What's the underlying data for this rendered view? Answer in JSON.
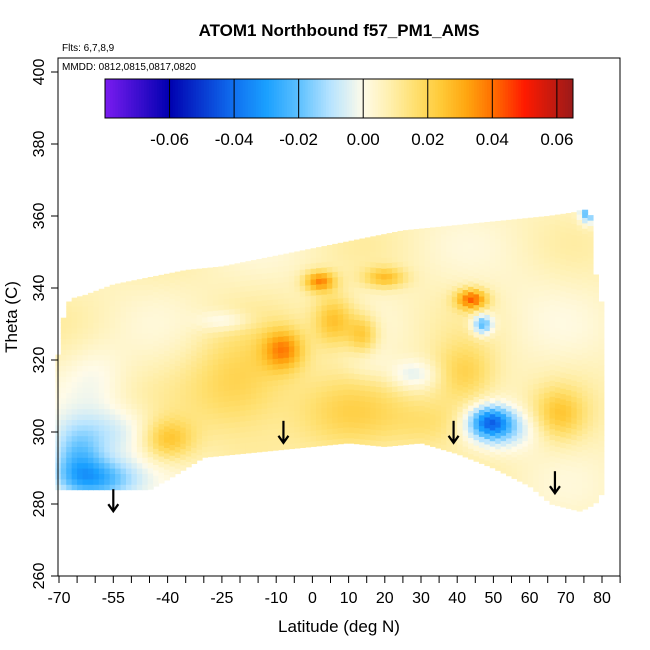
{
  "chart_data": {
    "type": "heatmap",
    "title": "ATOM1 Northbound f57_PM1_AMS",
    "flights_note": "Flts: 6,7,8,9",
    "dates_note": "MMDD: 0812,0815,0817,0820",
    "xlabel": "Latitude (deg N)",
    "ylabel": "Theta (C)",
    "xlim": [
      -70,
      85
    ],
    "ylim": [
      260,
      400
    ],
    "x_tick_labels": [
      "-70",
      "-55",
      "-40",
      "-25",
      "-10",
      "0",
      "10",
      "20",
      "30",
      "40",
      "50",
      "60",
      "70",
      "80"
    ],
    "x_tick_values": [
      -70,
      -55,
      -40,
      -25,
      -10,
      0,
      10,
      20,
      30,
      40,
      50,
      60,
      70,
      80
    ],
    "x_minor_ticks": [
      -65,
      -60,
      -50,
      -45,
      -35,
      -30,
      -20,
      -15,
      -5,
      5,
      15,
      25,
      35,
      45,
      55,
      65,
      75,
      85
    ],
    "y_tick_labels": [
      "260",
      "280",
      "300",
      "320",
      "340",
      "360",
      "380",
      "400"
    ],
    "y_tick_values": [
      260,
      280,
      300,
      320,
      340,
      360,
      380,
      400
    ],
    "colorbar": {
      "range": [
        -0.08,
        0.065
      ],
      "labels": [
        "-0.06",
        "-0.04",
        "-0.02",
        "0.00",
        "0.02",
        "0.04",
        "0.06"
      ],
      "label_values": [
        -0.06,
        -0.04,
        -0.02,
        0.0,
        0.02,
        0.04,
        0.06
      ],
      "colors": [
        "#7a1cf0",
        "#1010d8",
        "#0000b0",
        "#0a50e6",
        "#1aa0ff",
        "#7fd0ff",
        "#d8f0ff",
        "#ffffff",
        "#fff8d0",
        "#ffe680",
        "#ffc830",
        "#ff9a00",
        "#ff5a00",
        "#ff0000",
        "#c80000",
        "#a01818"
      ]
    },
    "arrows": [
      {
        "lat": -55,
        "theta": 278
      },
      {
        "lat": -8,
        "theta": 297
      },
      {
        "lat": 39,
        "theta": 297
      },
      {
        "lat": 67,
        "theta": 283
      }
    ],
    "upper_boundary": [
      [
        -71,
        302
      ],
      [
        -70,
        328
      ],
      [
        -67,
        337
      ],
      [
        -63,
        338
      ],
      [
        -55,
        341
      ],
      [
        -45,
        343
      ],
      [
        -35,
        345
      ],
      [
        -25,
        346
      ],
      [
        -15,
        348
      ],
      [
        -5,
        350
      ],
      [
        5,
        352
      ],
      [
        15,
        354
      ],
      [
        25,
        356
      ],
      [
        35,
        357
      ],
      [
        45,
        358
      ],
      [
        55,
        359
      ],
      [
        65,
        360
      ],
      [
        72,
        361
      ],
      [
        75,
        362
      ],
      [
        77,
        360
      ],
      [
        78,
        345
      ],
      [
        80,
        335
      ],
      [
        80,
        315
      ]
    ],
    "lower_boundary": [
      [
        -71,
        284
      ],
      [
        -50,
        284
      ],
      [
        -45,
        284
      ],
      [
        -38,
        288
      ],
      [
        -30,
        293
      ],
      [
        -20,
        294
      ],
      [
        -10,
        295
      ],
      [
        0,
        296
      ],
      [
        10,
        297
      ],
      [
        20,
        296
      ],
      [
        30,
        297
      ],
      [
        40,
        294
      ],
      [
        50,
        290
      ],
      [
        60,
        285
      ],
      [
        66,
        280
      ],
      [
        70,
        279
      ],
      [
        74,
        278
      ],
      [
        78,
        280
      ],
      [
        80,
        283
      ]
    ],
    "field_features": [
      {
        "lat": -60,
        "theta": 287,
        "value": -0.03,
        "sx": 8,
        "sy": 4
      },
      {
        "lat": -65,
        "theta": 293,
        "value": -0.022,
        "sx": 5,
        "sy": 6
      },
      {
        "lat": -55,
        "theta": 300,
        "value": -0.012,
        "sx": 9,
        "sy": 5
      },
      {
        "lat": -60,
        "theta": 315,
        "value": -0.006,
        "sx": 6,
        "sy": 7
      },
      {
        "lat": 49,
        "theta": 303,
        "value": -0.035,
        "sx": 4,
        "sy": 3
      },
      {
        "lat": 52,
        "theta": 301,
        "value": -0.018,
        "sx": 7,
        "sy": 4
      },
      {
        "lat": 47,
        "theta": 330,
        "value": -0.03,
        "sx": 2,
        "sy": 2
      },
      {
        "lat": 28,
        "theta": 316,
        "value": -0.012,
        "sx": 5,
        "sy": 3
      },
      {
        "lat": -24,
        "theta": 331,
        "value": -0.01,
        "sx": 5,
        "sy": 2
      },
      {
        "lat": 15,
        "theta": 320,
        "value": -0.006,
        "sx": 4,
        "sy": 4
      },
      {
        "lat": 76,
        "theta": 361,
        "value": -0.03,
        "sx": 1.5,
        "sy": 2
      },
      {
        "lat": 60,
        "theta": 338,
        "value": -0.002,
        "sx": 10,
        "sy": 12
      },
      {
        "lat": -8,
        "theta": 323,
        "value": 0.026,
        "sx": 4,
        "sy": 4
      },
      {
        "lat": 6,
        "theta": 331,
        "value": 0.022,
        "sx": 4,
        "sy": 5
      },
      {
        "lat": 44,
        "theta": 337,
        "value": 0.035,
        "sx": 3,
        "sy": 2
      },
      {
        "lat": 2,
        "theta": 342,
        "value": 0.03,
        "sx": 3,
        "sy": 2
      },
      {
        "lat": 20,
        "theta": 343,
        "value": 0.02,
        "sx": 4,
        "sy": 2
      },
      {
        "lat": 14,
        "theta": 327,
        "value": 0.02,
        "sx": 3,
        "sy": 4
      },
      {
        "lat": -40,
        "theta": 298,
        "value": 0.02,
        "sx": 5,
        "sy": 4
      },
      {
        "lat": -20,
        "theta": 313,
        "value": 0.016,
        "sx": 10,
        "sy": 10
      },
      {
        "lat": 42,
        "theta": 316,
        "value": 0.016,
        "sx": 6,
        "sy": 6
      },
      {
        "lat": 68,
        "theta": 305,
        "value": 0.016,
        "sx": 5,
        "sy": 5
      },
      {
        "lat": 10,
        "theta": 305,
        "value": 0.012,
        "sx": 12,
        "sy": 8
      },
      {
        "lat": 35,
        "theta": 303,
        "value": 0.01,
        "sx": 8,
        "sy": 5
      }
    ]
  }
}
